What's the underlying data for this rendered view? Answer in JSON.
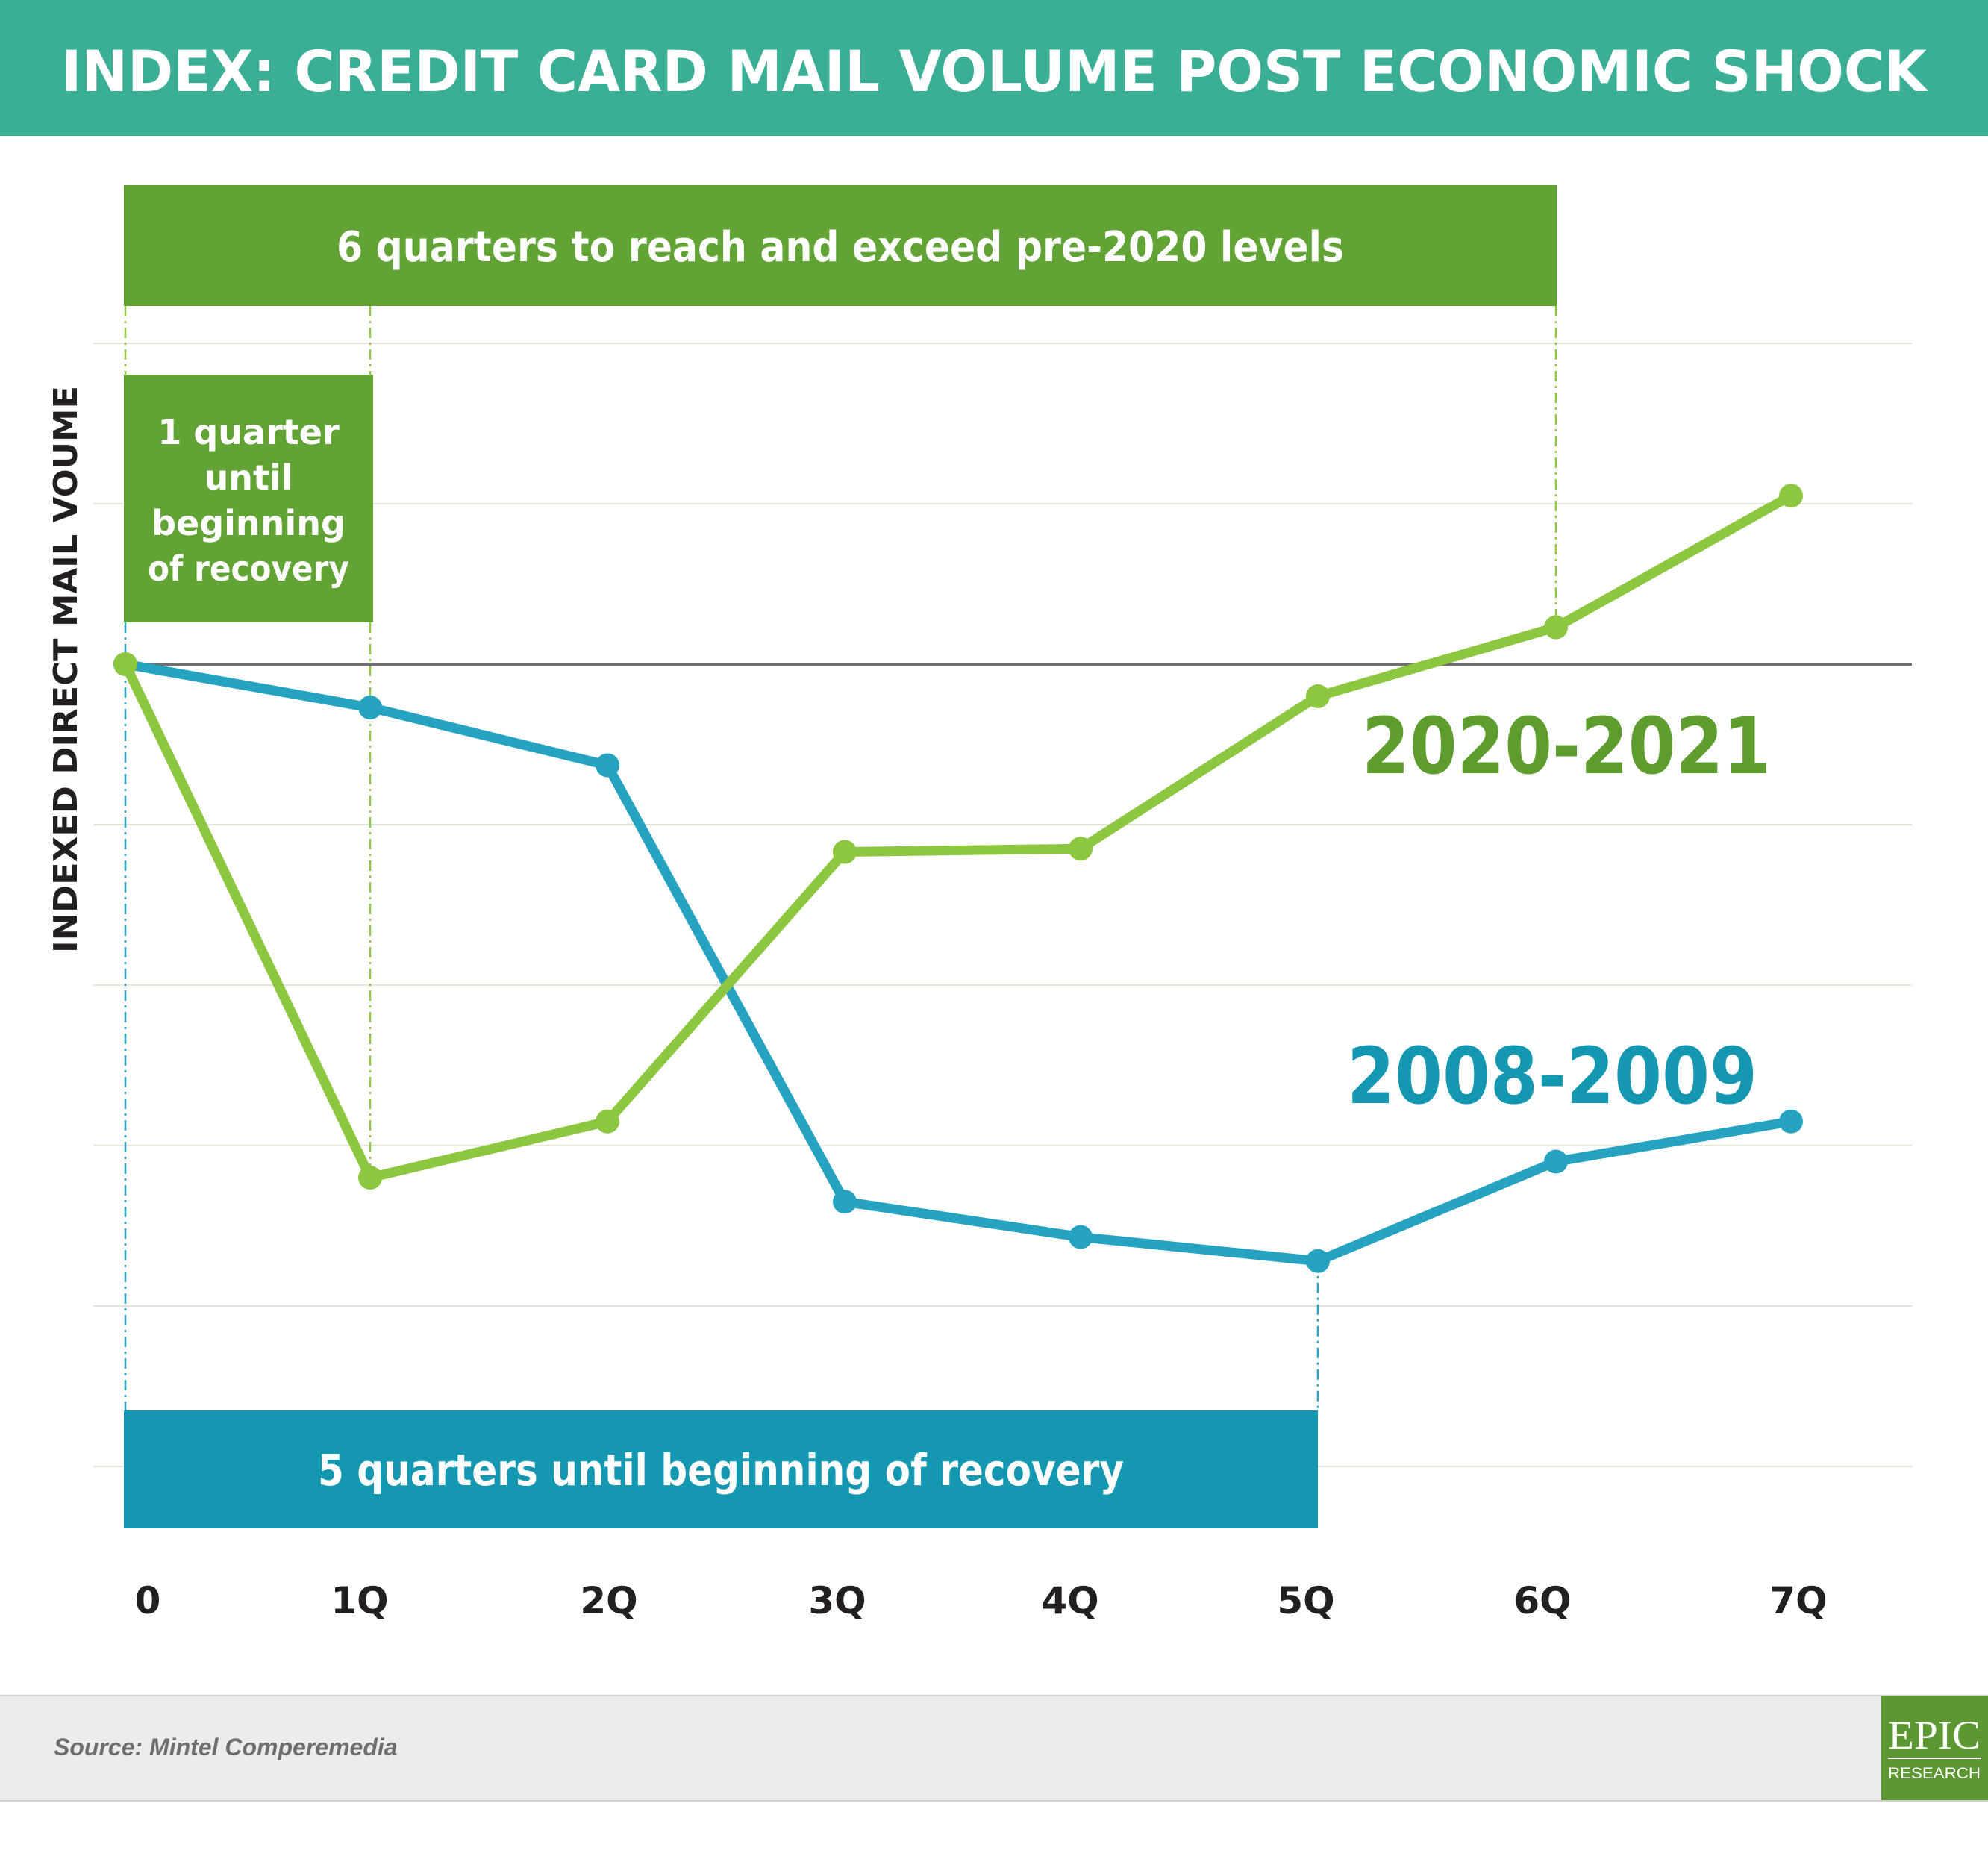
{
  "title": "INDEX: CREDIT CARD MAIL VOLUME POST ECONOMIC SHOCK",
  "colors": {
    "title_bar": "#3aaf96",
    "green_box": "#62a335",
    "green_line": "#8dc63f",
    "green_label": "#5c9d2e",
    "blue_line": "#27a3c2",
    "blue_box": "#1497b1",
    "blue_label": "#1497b1",
    "baseline": "#6d6e71",
    "grid": "#e3e6d8",
    "footer_bg": "#ececec",
    "logo_bg": "#5d9732"
  },
  "annotations": {
    "top_box": "6 quarters to reach and exceed pre-2020 levels",
    "left_box": [
      "1 quarter",
      "until",
      "beginning",
      "of recovery"
    ],
    "bottom_box": "5 quarters until beginning of recovery"
  },
  "chart_data": {
    "type": "line",
    "title": "INDEX: CREDIT CARD MAIL VOLUME POST ECONOMIC SHOCK",
    "xlabel": "",
    "ylabel": "INDEXED DIRECT MAIL VOUME",
    "categories": [
      "0",
      "1Q",
      "2Q",
      "3Q",
      "4Q",
      "5Q",
      "6Q",
      "7Q"
    ],
    "y_ticks_labeled": false,
    "grid": "horizontal",
    "baseline_value": 0,
    "ylim": [
      -5,
      2
    ],
    "series": [
      {
        "name": "2020-2021",
        "color": "#8dc63f",
        "values": [
          0,
          -3.2,
          -2.85,
          -1.17,
          -1.15,
          -0.2,
          0.23,
          1.05
        ]
      },
      {
        "name": "2008-2009",
        "color": "#27a3c2",
        "values": [
          0,
          -0.27,
          -0.63,
          -3.35,
          -3.57,
          -3.72,
          -3.1,
          -2.85
        ]
      }
    ]
  },
  "footer": {
    "source": "Source: Mintel Comperemedia",
    "logo_main": "EPIC",
    "logo_sub": "RESEARCH"
  }
}
